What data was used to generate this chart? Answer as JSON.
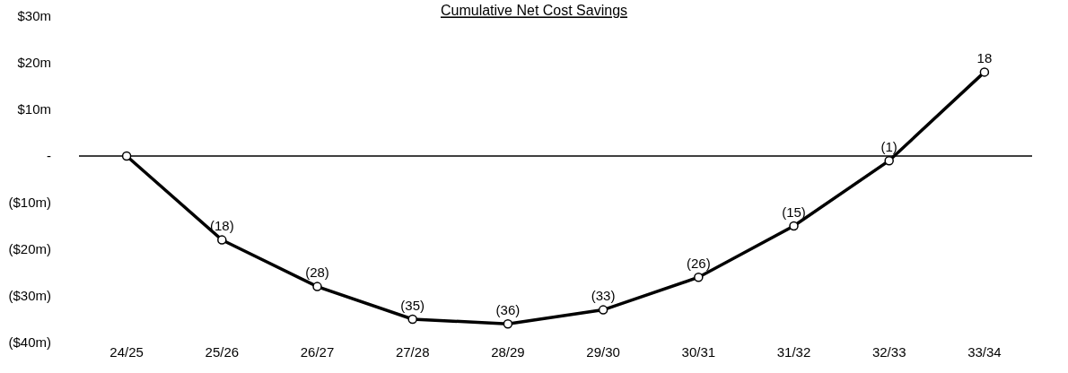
{
  "chart_data": {
    "type": "line",
    "title": "Cumulative Net Cost Savings",
    "categories": [
      "24/25",
      "25/26",
      "26/27",
      "27/28",
      "28/29",
      "29/30",
      "30/31",
      "31/32",
      "32/33",
      "33/34"
    ],
    "series": [
      {
        "color": "#000000",
        "values": [
          0,
          -18,
          -28,
          -35,
          -36,
          -33,
          -26,
          -15,
          -1,
          18
        ],
        "value_labels": [
          null,
          "(18)",
          "(28)",
          "(35)",
          "(36)",
          "(33)",
          "(26)",
          "(15)",
          "(1)",
          "18"
        ]
      }
    ],
    "ylim": [
      -40,
      30
    ],
    "yticks": [
      {
        "value": 30,
        "label": "$30m"
      },
      {
        "value": 20,
        "label": "$20m"
      },
      {
        "value": 10,
        "label": "$10m"
      },
      {
        "value": 0,
        "label": "-"
      },
      {
        "value": -10,
        "label": "($10m)"
      },
      {
        "value": -20,
        "label": "($20m)"
      },
      {
        "value": -30,
        "label": "($30m)"
      },
      {
        "value": -40,
        "label": "($40m)"
      }
    ],
    "ref_lines": [
      {
        "axis": "y",
        "value": 0,
        "color": "#000000"
      }
    ],
    "grid": false,
    "marker": "circle",
    "line_style": "solid"
  }
}
